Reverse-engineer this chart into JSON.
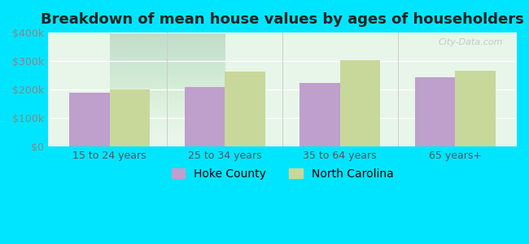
{
  "title": "Breakdown of mean house values by ages of householders",
  "categories": [
    "15 to 24 years",
    "25 to 34 years",
    "35 to 64 years",
    "65 years+"
  ],
  "hoke_county": [
    190000,
    208000,
    223000,
    243000
  ],
  "north_carolina": [
    200000,
    262000,
    302000,
    265000
  ],
  "hoke_color": "#bf9fcc",
  "nc_color": "#c8d89a",
  "background_outer": "#00e5ff",
  "background_chart_top": "#e8f5e9",
  "background_chart_bottom": "#f0faf0",
  "ylim": [
    0,
    400000
  ],
  "yticks": [
    0,
    100000,
    200000,
    300000,
    400000
  ],
  "ytick_labels": [
    "$0",
    "$100k",
    "$200k",
    "$300k",
    "$400k"
  ],
  "legend_hoke": "Hoke County",
  "legend_nc": "North Carolina",
  "watermark": "City-Data.com",
  "title_fontsize": 13,
  "tick_fontsize": 9,
  "legend_fontsize": 10
}
